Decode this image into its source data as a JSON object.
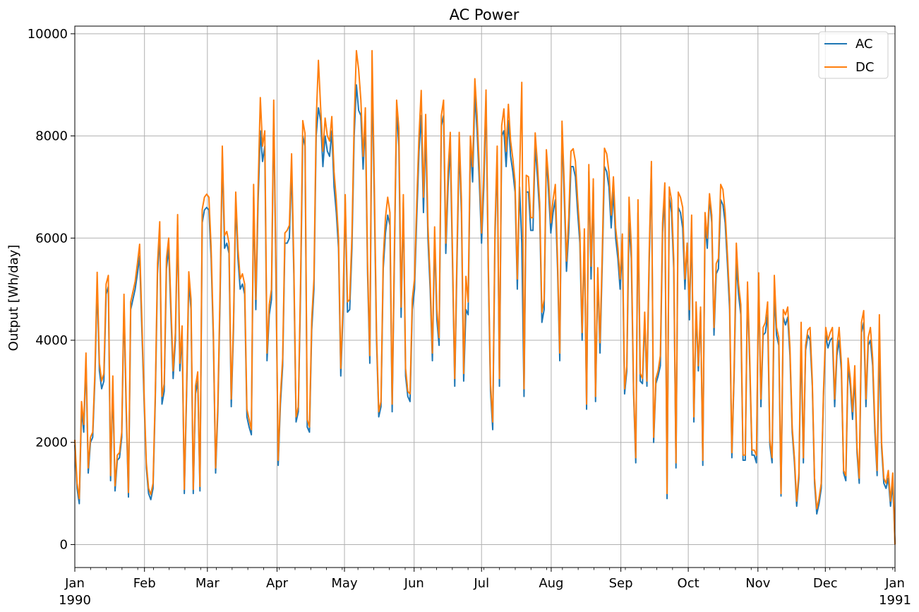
{
  "chart_data": {
    "type": "line",
    "title": "AC Power",
    "xlabel": "",
    "ylabel": "Output [Wh/day]",
    "x_ticks": [
      "Jan",
      "Feb",
      "Mar",
      "Apr",
      "May",
      "Jun",
      "Jul",
      "Aug",
      "Sep",
      "Oct",
      "Nov",
      "Dec",
      "Jan"
    ],
    "x_year_labels": [
      "1990",
      "1991"
    ],
    "x_range": [
      "1990-01-01",
      "1991-01-01"
    ],
    "ylim": [
      -450,
      10150
    ],
    "y_ticks": [
      0,
      2000,
      4000,
      6000,
      8000,
      10000
    ],
    "grid": true,
    "legend_position": "top-right",
    "series": [
      {
        "name": "AC",
        "color": "#1f77b4",
        "values": [
          1950,
          1100,
          800,
          2650,
          2200,
          3600,
          1400,
          2000,
          2100,
          3250,
          5100,
          3400,
          3050,
          3200,
          4900,
          5050,
          1250,
          3100,
          1050,
          1650,
          1700,
          2100,
          4700,
          2600,
          930,
          4600,
          4800,
          5000,
          5300,
          5650,
          4200,
          2800,
          1500,
          1000,
          880,
          1100,
          2800,
          5300,
          6100,
          2750,
          3000,
          5400,
          5800,
          4500,
          3250,
          4000,
          6250,
          3400,
          4100,
          1000,
          2900,
          5150,
          4600,
          1000,
          2950,
          3200,
          1050,
          6300,
          6550,
          6600,
          6550,
          5600,
          4000,
          1400,
          2600,
          4800,
          7600,
          5800,
          5900,
          5700,
          2700,
          4200,
          6700,
          5600,
          5000,
          5100,
          4900,
          2500,
          2300,
          2150,
          6800,
          4600,
          6700,
          8100,
          7500,
          7800,
          3600,
          4500,
          4800,
          8500,
          5200,
          1550,
          2750,
          3500,
          5900,
          5900,
          6000,
          7400,
          5300,
          2400,
          2600,
          4900,
          8000,
          7800,
          2300,
          2200,
          4200,
          5000,
          8000,
          8550,
          8300,
          7400,
          8000,
          7700,
          7600,
          8100,
          7000,
          6500,
          5800,
          3300,
          4500,
          6700,
          4550,
          4600,
          5800,
          8000,
          9000,
          8500,
          8400,
          7350,
          8300,
          5300,
          3550,
          9200,
          6800,
          4000,
          2500,
          2700,
          5400,
          6100,
          6450,
          6250,
          2600,
          5600,
          8500,
          7800,
          4450,
          6700,
          3300,
          2900,
          2800,
          4600,
          5000,
          6400,
          7700,
          8400,
          6500,
          8100,
          6000,
          5000,
          3600,
          6000,
          4400,
          3900,
          8200,
          8400,
          5700,
          7000,
          7800,
          5500,
          3100,
          5500,
          7800,
          6500,
          3200,
          4600,
          4500,
          7800,
          7100,
          8800,
          8100,
          7100,
          5900,
          7000,
          8700,
          5400,
          3000,
          2250,
          6000,
          7600,
          3100,
          8000,
          8100,
          7400,
          8300,
          7600,
          7300,
          6900,
          5000,
          7000,
          5900,
          2900,
          6900,
          6900,
          6150,
          6150,
          7800,
          7200,
          6500,
          4350,
          4600,
          7600,
          6900,
          6100,
          6500,
          6750,
          5400,
          3600,
          8100,
          6800,
          5350,
          6100,
          7400,
          7400,
          7200,
          6500,
          5900,
          4000,
          6000,
          2650,
          7300,
          5200,
          7000,
          2800,
          5300,
          3750,
          5500,
          7400,
          7300,
          7000,
          6200,
          6900,
          6000,
          5600,
          5000,
          5800,
          2950,
          3400,
          6300,
          5600,
          3000,
          1600,
          6500,
          3200,
          3150,
          4400,
          3100,
          5500,
          7400,
          2000,
          3150,
          3300,
          3500,
          6100,
          6900,
          900,
          6800,
          6500,
          5400,
          1500,
          6600,
          6500,
          6200,
          5000,
          5900,
          4400,
          6300,
          2400,
          4600,
          3400,
          4600,
          1550,
          6300,
          5800,
          6800,
          6300,
          4100,
          5300,
          5400,
          6750,
          6650,
          6300,
          5500,
          4600,
          1700,
          3300,
          5500,
          4900,
          4500,
          1650,
          1650,
          5000,
          3500,
          1750,
          1750,
          1600,
          5200,
          2700,
          4100,
          4150,
          4500,
          1950,
          1600,
          4900,
          4100,
          3900,
          950,
          4450,
          4300,
          4450,
          3700,
          2200,
          1600,
          750,
          1300,
          4000,
          1600,
          3800,
          4100,
          4000,
          3100,
          1200,
          600,
          800,
          1100,
          2900,
          4100,
          3850,
          4000,
          4050,
          2700,
          3700,
          4000,
          3400,
          1400,
          1250,
          3500,
          3100,
          2450,
          3300,
          1800,
          1200,
          4150,
          4350,
          2700,
          3900,
          4000,
          3500,
          2200,
          1350,
          3900,
          1900,
          1200,
          1100,
          1300,
          750,
          1200,
          0
        ]
      },
      {
        "name": "DC",
        "color": "#ff7f0e",
        "values": [
          2050,
          1200,
          900,
          2800,
          2350,
          3750,
          1500,
          2100,
          2200,
          3400,
          5330,
          3550,
          3200,
          3350,
          5100,
          5270,
          1350,
          3300,
          1150,
          1750,
          1800,
          2200,
          4900,
          2750,
          1020,
          4750,
          4950,
          5150,
          5500,
          5880,
          4400,
          2950,
          1600,
          1100,
          980,
          1200,
          2950,
          5500,
          6320,
          2900,
          3150,
          5600,
          6000,
          4700,
          3400,
          4150,
          6460,
          3550,
          4280,
          1080,
          3050,
          5340,
          4800,
          1080,
          3100,
          3380,
          1140,
          6560,
          6800,
          6860,
          6800,
          5800,
          4150,
          1500,
          2750,
          5000,
          7800,
          6050,
          6130,
          5900,
          2850,
          4350,
          6900,
          5800,
          5200,
          5300,
          5100,
          2650,
          2450,
          2250,
          7050,
          4800,
          6950,
          8750,
          7800,
          8100,
          3750,
          4700,
          5000,
          8700,
          5400,
          1650,
          2900,
          3650,
          6100,
          6150,
          6250,
          7650,
          5500,
          2500,
          2700,
          5100,
          8300,
          8050,
          2450,
          2300,
          4400,
          5200,
          8300,
          9480,
          8550,
          7700,
          8350,
          8000,
          7900,
          8380,
          7300,
          6750,
          6000,
          3450,
          4700,
          6850,
          4750,
          4800,
          6050,
          8300,
          9670,
          9300,
          8700,
          7600,
          8550,
          5500,
          3700,
          9670,
          7100,
          4150,
          2600,
          2800,
          5600,
          6400,
          6800,
          6500,
          2750,
          5800,
          8700,
          8150,
          4650,
          6850,
          3450,
          3000,
          2950,
          4800,
          5200,
          6700,
          8000,
          8890,
          6800,
          8420,
          6250,
          5200,
          3750,
          6220,
          4600,
          4050,
          8400,
          8700,
          5900,
          7300,
          8070,
          5700,
          3250,
          5700,
          8070,
          6750,
          3350,
          5250,
          4750,
          8000,
          7400,
          9120,
          8400,
          7350,
          6100,
          7300,
          8900,
          5600,
          3150,
          2400,
          6200,
          7800,
          3250,
          8200,
          8530,
          7700,
          8620,
          7900,
          7550,
          7100,
          5200,
          7200,
          9050,
          3050,
          7230,
          7200,
          6400,
          6400,
          8060,
          7450,
          6700,
          4550,
          4800,
          7730,
          7150,
          6300,
          6750,
          7050,
          5600,
          3750,
          8290,
          7050,
          5550,
          6400,
          7700,
          7750,
          7500,
          6750,
          6100,
          4150,
          6180,
          2750,
          7440,
          5450,
          7160,
          2900,
          5420,
          3950,
          5700,
          7760,
          7650,
          7300,
          6450,
          7200,
          6200,
          5800,
          5200,
          6080,
          3050,
          3500,
          6800,
          5850,
          3100,
          1700,
          6750,
          3350,
          3250,
          4550,
          3200,
          5700,
          7500,
          2100,
          3250,
          3400,
          3700,
          6300,
          7080,
          1000,
          7000,
          6750,
          5600,
          1600,
          6900,
          6800,
          6600,
          5200,
          5900,
          4600,
          6450,
          2500,
          4750,
          3500,
          4650,
          1650,
          6500,
          6000,
          6870,
          6450,
          4250,
          5500,
          5600,
          7050,
          6950,
          6500,
          5700,
          4800,
          1800,
          3400,
          5900,
          5100,
          4700,
          1750,
          1750,
          5140,
          3650,
          1850,
          1850,
          1750,
          5320,
          2850,
          4250,
          4350,
          4750,
          2050,
          1700,
          5270,
          4250,
          4050,
          1000,
          4600,
          4500,
          4650,
          3850,
          2300,
          1700,
          850,
          1400,
          4350,
          1700,
          3900,
          4200,
          4250,
          3200,
          1300,
          700,
          900,
          1200,
          3000,
          4250,
          4000,
          4150,
          4250,
          2850,
          3850,
          4250,
          3550,
          1450,
          1350,
          3650,
          3250,
          2600,
          3500,
          1900,
          1300,
          4350,
          4580,
          2850,
          4050,
          4250,
          3650,
          2350,
          1450,
          4500,
          2000,
          1300,
          1200,
          1450,
          850,
          1400,
          0
        ]
      }
    ]
  }
}
